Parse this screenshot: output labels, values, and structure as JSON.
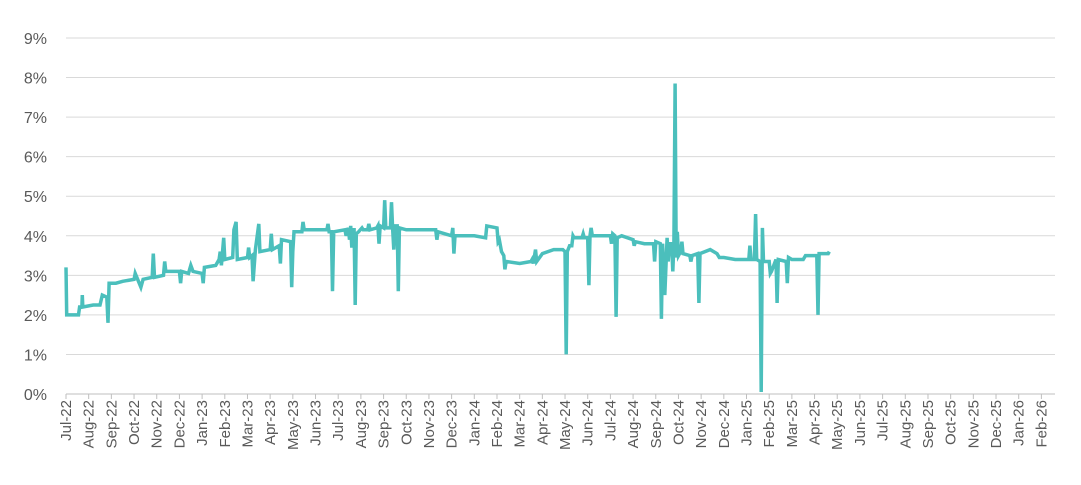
{
  "chart_data": {
    "type": "line",
    "title": "",
    "xlabel": "",
    "ylabel": "",
    "x_ticks": [
      "Jul-22",
      "Aug-22",
      "Sep-22",
      "Oct-22",
      "Nov-22",
      "Dec-22",
      "Jan-23",
      "Feb-23",
      "Mar-23",
      "Apr-23",
      "May-23",
      "Jun-23",
      "Jul-23",
      "Aug-23",
      "Sep-23",
      "Oct-23",
      "Nov-23",
      "Dec-23",
      "Jan-24",
      "Feb-24",
      "Mar-24",
      "Apr-24",
      "May-24",
      "Jun-24",
      "Jul-24",
      "Aug-24",
      "Sep-24",
      "Oct-24",
      "Nov-24",
      "Dec-24",
      "Jan-25",
      "Feb-25",
      "Mar-25",
      "Apr-25",
      "May-25",
      "Jun-25",
      "Jul-25",
      "Aug-25",
      "Sep-25",
      "Oct-25",
      "Nov-25",
      "Dec-25",
      "Jan-26",
      "Feb-26"
    ],
    "y_ticks": [
      "0%",
      "1%",
      "2%",
      "3%",
      "4%",
      "5%",
      "6%",
      "7%",
      "8%",
      "9%"
    ],
    "ylim": [
      0,
      9
    ],
    "y_unit": "%",
    "grid": "horizontal",
    "line_color": "#4bbfbc",
    "series": [
      {
        "points": [
          [
            0.0,
            3.2
          ],
          [
            0.03,
            2.0
          ],
          [
            0.2,
            2.0
          ],
          [
            0.55,
            2.0
          ],
          [
            0.6,
            2.2
          ],
          [
            0.7,
            2.2
          ],
          [
            0.72,
            2.5
          ],
          [
            0.74,
            2.2
          ],
          [
            1.2,
            2.25
          ],
          [
            1.5,
            2.25
          ],
          [
            1.6,
            2.5
          ],
          [
            1.8,
            2.45
          ],
          [
            1.85,
            1.8
          ],
          [
            1.9,
            2.8
          ],
          [
            2.2,
            2.8
          ],
          [
            2.5,
            2.85
          ],
          [
            3.0,
            2.9
          ],
          [
            3.05,
            3.05
          ],
          [
            3.3,
            2.7
          ],
          [
            3.4,
            2.9
          ],
          [
            3.8,
            2.95
          ],
          [
            3.85,
            3.55
          ],
          [
            3.9,
            2.95
          ],
          [
            4.3,
            3.0
          ],
          [
            4.35,
            3.35
          ],
          [
            4.4,
            3.1
          ],
          [
            5.0,
            3.1
          ],
          [
            5.05,
            2.8
          ],
          [
            5.1,
            3.1
          ],
          [
            5.4,
            3.05
          ],
          [
            5.5,
            3.25
          ],
          [
            5.6,
            3.1
          ],
          [
            6.0,
            3.05
          ],
          [
            6.05,
            2.8
          ],
          [
            6.1,
            3.2
          ],
          [
            6.6,
            3.25
          ],
          [
            6.75,
            3.4
          ],
          [
            6.8,
            3.6
          ],
          [
            6.85,
            3.25
          ],
          [
            6.95,
            3.95
          ],
          [
            7.0,
            3.4
          ],
          [
            7.35,
            3.45
          ],
          [
            7.4,
            4.15
          ],
          [
            7.5,
            4.35
          ],
          [
            7.55,
            3.4
          ],
          [
            8.0,
            3.45
          ],
          [
            8.05,
            3.7
          ],
          [
            8.1,
            3.45
          ],
          [
            8.2,
            3.5
          ],
          [
            8.25,
            2.85
          ],
          [
            8.35,
            3.65
          ],
          [
            8.5,
            4.3
          ],
          [
            8.55,
            3.6
          ],
          [
            9.0,
            3.65
          ],
          [
            9.05,
            4.05
          ],
          [
            9.1,
            3.65
          ],
          [
            9.4,
            3.75
          ],
          [
            9.45,
            3.3
          ],
          [
            9.5,
            3.9
          ],
          [
            9.9,
            3.85
          ],
          [
            9.95,
            2.7
          ],
          [
            10.0,
            3.6
          ],
          [
            10.05,
            4.1
          ],
          [
            10.4,
            4.1
          ],
          [
            10.45,
            4.35
          ],
          [
            10.5,
            4.15
          ],
          [
            11.5,
            4.15
          ],
          [
            11.55,
            4.3
          ],
          [
            11.6,
            4.1
          ],
          [
            11.7,
            4.1
          ],
          [
            11.75,
            2.6
          ],
          [
            11.8,
            4.1
          ],
          [
            12.3,
            4.15
          ],
          [
            12.35,
            4.0
          ],
          [
            12.45,
            4.2
          ],
          [
            12.5,
            3.9
          ],
          [
            12.55,
            4.25
          ],
          [
            12.6,
            3.7
          ],
          [
            12.65,
            4.15
          ],
          [
            12.7,
            4.15
          ],
          [
            12.75,
            2.25
          ],
          [
            12.8,
            4.05
          ],
          [
            12.9,
            4.1
          ],
          [
            13.05,
            4.2
          ],
          [
            13.1,
            4.15
          ],
          [
            13.3,
            4.15
          ],
          [
            13.35,
            4.3
          ],
          [
            13.4,
            4.15
          ],
          [
            13.7,
            4.2
          ],
          [
            13.75,
            4.25
          ],
          [
            13.8,
            3.8
          ],
          [
            13.85,
            4.25
          ],
          [
            14.0,
            4.2
          ],
          [
            14.05,
            4.9
          ],
          [
            14.1,
            4.2
          ],
          [
            14.3,
            4.2
          ],
          [
            14.35,
            4.85
          ],
          [
            14.4,
            4.2
          ],
          [
            14.45,
            3.65
          ],
          [
            14.5,
            4.25
          ],
          [
            14.6,
            4.25
          ],
          [
            14.65,
            2.6
          ],
          [
            14.7,
            4.2
          ],
          [
            15.0,
            4.15
          ],
          [
            15.5,
            4.15
          ],
          [
            16.0,
            4.15
          ],
          [
            16.3,
            4.15
          ],
          [
            16.35,
            3.9
          ],
          [
            16.4,
            4.1
          ],
          [
            17.0,
            4.0
          ],
          [
            17.05,
            4.2
          ],
          [
            17.1,
            3.55
          ],
          [
            17.15,
            4.0
          ],
          [
            18.0,
            4.0
          ],
          [
            18.5,
            3.95
          ],
          [
            18.55,
            4.25
          ],
          [
            19.0,
            4.2
          ],
          [
            19.05,
            3.85
          ],
          [
            19.1,
            3.9
          ],
          [
            19.2,
            3.6
          ],
          [
            19.3,
            3.5
          ],
          [
            19.35,
            3.15
          ],
          [
            19.4,
            3.35
          ],
          [
            20.0,
            3.3
          ],
          [
            20.5,
            3.35
          ],
          [
            20.55,
            3.4
          ],
          [
            20.6,
            3.3
          ],
          [
            20.7,
            3.65
          ],
          [
            20.75,
            3.35
          ],
          [
            21.0,
            3.55
          ],
          [
            21.5,
            3.65
          ],
          [
            21.9,
            3.65
          ],
          [
            22.0,
            3.6
          ],
          [
            22.05,
            1.0
          ],
          [
            22.1,
            3.6
          ],
          [
            22.2,
            3.75
          ],
          [
            22.3,
            3.75
          ],
          [
            22.35,
            4.0
          ],
          [
            22.4,
            3.95
          ],
          [
            22.6,
            3.95
          ],
          [
            22.75,
            3.95
          ],
          [
            22.8,
            4.05
          ],
          [
            22.85,
            3.95
          ],
          [
            23.0,
            3.95
          ],
          [
            23.05,
            2.75
          ],
          [
            23.1,
            4.0
          ],
          [
            23.15,
            4.2
          ],
          [
            23.2,
            4.0
          ],
          [
            24.0,
            4.0
          ],
          [
            24.05,
            3.8
          ],
          [
            24.1,
            4.05
          ],
          [
            24.2,
            4.0
          ],
          [
            24.25,
            1.95
          ],
          [
            24.3,
            3.95
          ],
          [
            24.5,
            4.0
          ],
          [
            25.0,
            3.9
          ],
          [
            25.05,
            3.75
          ],
          [
            25.1,
            3.85
          ],
          [
            25.5,
            3.8
          ],
          [
            25.9,
            3.8
          ],
          [
            25.95,
            3.35
          ],
          [
            26.0,
            3.85
          ],
          [
            26.2,
            3.8
          ],
          [
            26.25,
            1.9
          ],
          [
            26.3,
            3.8
          ],
          [
            26.4,
            2.5
          ],
          [
            26.5,
            3.95
          ],
          [
            26.55,
            3.35
          ],
          [
            26.6,
            3.8
          ],
          [
            26.7,
            3.8
          ],
          [
            26.75,
            3.1
          ],
          [
            26.8,
            3.8
          ],
          [
            26.85,
            7.85
          ],
          [
            26.9,
            3.45
          ],
          [
            26.95,
            4.1
          ],
          [
            27.0,
            3.5
          ],
          [
            27.1,
            3.6
          ],
          [
            27.15,
            3.85
          ],
          [
            27.2,
            3.55
          ],
          [
            27.5,
            3.5
          ],
          [
            27.55,
            3.35
          ],
          [
            27.6,
            3.5
          ],
          [
            27.85,
            3.55
          ],
          [
            27.9,
            2.3
          ],
          [
            27.95,
            3.55
          ],
          [
            28.4,
            3.65
          ],
          [
            28.7,
            3.55
          ],
          [
            28.8,
            3.45
          ],
          [
            29.0,
            3.45
          ],
          [
            29.5,
            3.4
          ],
          [
            30.0,
            3.4
          ],
          [
            30.1,
            3.4
          ],
          [
            30.15,
            3.75
          ],
          [
            30.2,
            3.4
          ],
          [
            30.35,
            3.4
          ],
          [
            30.4,
            4.55
          ],
          [
            30.45,
            3.4
          ],
          [
            30.6,
            3.35
          ],
          [
            30.65,
            0.05
          ],
          [
            30.7,
            4.2
          ],
          [
            30.75,
            3.35
          ],
          [
            31.0,
            3.35
          ],
          [
            31.05,
            3.05
          ],
          [
            31.1,
            3.1
          ],
          [
            31.3,
            3.4
          ],
          [
            31.35,
            2.3
          ],
          [
            31.4,
            3.4
          ],
          [
            31.75,
            3.35
          ],
          [
            31.8,
            2.8
          ],
          [
            31.85,
            3.45
          ],
          [
            32.0,
            3.4
          ],
          [
            32.5,
            3.4
          ],
          [
            32.6,
            3.5
          ],
          [
            33.1,
            3.5
          ],
          [
            33.15,
            2.0
          ],
          [
            33.2,
            3.55
          ],
          [
            33.6,
            3.55
          ],
          [
            33.65,
            3.6
          ]
        ]
      }
    ]
  }
}
